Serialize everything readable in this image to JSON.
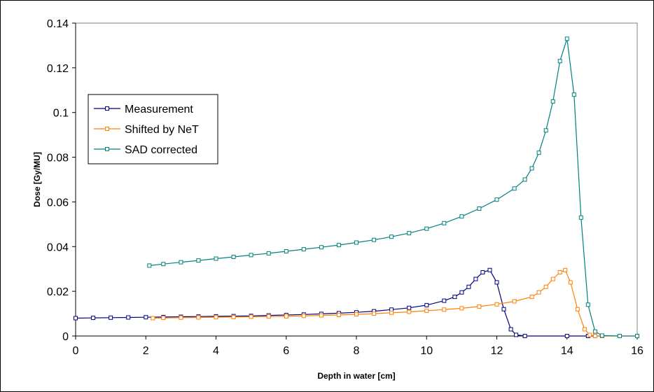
{
  "chart_data": {
    "type": "line",
    "xlabel": "Depth in water [cm]",
    "ylabel": "Dose [Gy/MU]",
    "xlim": [
      0,
      16
    ],
    "ylim": [
      0,
      0.14
    ],
    "x_ticks": [
      "0",
      "2",
      "4",
      "6",
      "8",
      "10",
      "12",
      "14",
      "16"
    ],
    "y_ticks": [
      "0",
      "0.02",
      "0.04",
      "0.06",
      "0.08",
      "0.1",
      "0.12",
      "0.14"
    ],
    "legend_position": "left",
    "grid": false,
    "series": [
      {
        "name": "Measurement",
        "color": "#000080",
        "marker": "square",
        "x": [
          0,
          0.5,
          1,
          1.5,
          2,
          2.5,
          3,
          3.5,
          4,
          4.5,
          5,
          5.5,
          6,
          6.5,
          7,
          7.5,
          8,
          8.5,
          9,
          9.5,
          10,
          10.5,
          10.8,
          11,
          11.2,
          11.4,
          11.6,
          11.8,
          12,
          12.2,
          12.4,
          12.55,
          12.8,
          14,
          14.6,
          15
        ],
        "y": [
          0.008,
          0.0081,
          0.0082,
          0.0083,
          0.0084,
          0.0085,
          0.0086,
          0.0087,
          0.0088,
          0.0089,
          0.009,
          0.0092,
          0.0094,
          0.0096,
          0.0099,
          0.0102,
          0.0106,
          0.0111,
          0.0118,
          0.0126,
          0.0138,
          0.0158,
          0.0175,
          0.0195,
          0.022,
          0.0255,
          0.0285,
          0.0295,
          0.024,
          0.012,
          0.003,
          0.0005,
          0.0,
          0.0,
          0.0,
          0.0
        ]
      },
      {
        "name": "Shifted by NeT",
        "color": "#FF8000",
        "marker": "square",
        "x": [
          2.2,
          2.5,
          3,
          3.5,
          4,
          4.5,
          5,
          5.5,
          6,
          6.5,
          7,
          7.5,
          8,
          8.5,
          9,
          9.5,
          10,
          10.5,
          11,
          11.5,
          12,
          12.5,
          13,
          13.2,
          13.4,
          13.6,
          13.8,
          13.95,
          14.1,
          14.3,
          14.5,
          14.65,
          14.8,
          15,
          15.5,
          16
        ],
        "y": [
          0.008,
          0.0081,
          0.0082,
          0.0083,
          0.0084,
          0.0085,
          0.0086,
          0.0087,
          0.0088,
          0.009,
          0.0092,
          0.0094,
          0.0097,
          0.01,
          0.0104,
          0.0108,
          0.0113,
          0.0118,
          0.0124,
          0.0132,
          0.0142,
          0.0155,
          0.0175,
          0.0195,
          0.022,
          0.0255,
          0.0285,
          0.0295,
          0.024,
          0.012,
          0.003,
          0.0005,
          0.0,
          0.0,
          0.0,
          0.0
        ]
      },
      {
        "name": "SAD corrected",
        "color": "#008080",
        "marker": "square",
        "x": [
          2.1,
          2.5,
          3,
          3.5,
          4,
          4.5,
          5,
          5.5,
          6,
          6.5,
          7,
          7.5,
          8,
          8.5,
          9,
          9.5,
          10,
          10.5,
          11,
          11.5,
          12,
          12.5,
          12.8,
          13,
          13.2,
          13.4,
          13.6,
          13.8,
          14,
          14.2,
          14.4,
          14.6,
          14.8,
          15,
          15.5,
          16
        ],
        "y": [
          0.0315,
          0.0322,
          0.033,
          0.0338,
          0.0346,
          0.0354,
          0.0362,
          0.037,
          0.0379,
          0.0388,
          0.0397,
          0.0407,
          0.0418,
          0.043,
          0.0444,
          0.046,
          0.048,
          0.0505,
          0.0535,
          0.057,
          0.061,
          0.066,
          0.07,
          0.075,
          0.082,
          0.092,
          0.105,
          0.123,
          0.133,
          0.108,
          0.053,
          0.014,
          0.002,
          0.0002,
          0.0,
          0.0
        ]
      }
    ]
  }
}
